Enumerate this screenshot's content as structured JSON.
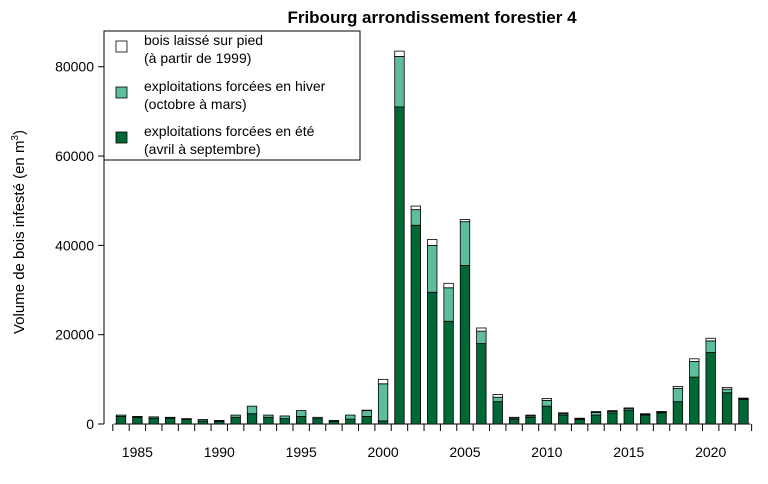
{
  "chart_data": {
    "type": "bar",
    "stacked": true,
    "title": "Fribourg arrondissement forestier 4",
    "ylabel": "Volume de bois infesté (en m",
    "ylabel_superscript": "3",
    "ylabel_suffix": ")",
    "xlabel": "",
    "ylim": [
      0,
      88000
    ],
    "yticks": [
      0,
      20000,
      40000,
      60000,
      80000
    ],
    "xtick_labels": [
      "1985",
      "1990",
      "1995",
      "2000",
      "2005",
      "2010",
      "2015",
      "2020"
    ],
    "x": [
      1984,
      1985,
      1986,
      1987,
      1988,
      1989,
      1990,
      1991,
      1992,
      1993,
      1994,
      1995,
      1996,
      1997,
      1998,
      1999,
      2000,
      2001,
      2002,
      2003,
      2004,
      2005,
      2006,
      2007,
      2008,
      2009,
      2010,
      2011,
      2012,
      2013,
      2014,
      2015,
      2016,
      2017,
      2018,
      2019,
      2020,
      2021,
      2022
    ],
    "series": [
      {
        "name_lines": [
          "exploitations forcées en été",
          "(avril à septembre)"
        ],
        "color": "#006837",
        "values": [
          1700,
          1500,
          1300,
          1300,
          1000,
          700,
          600,
          1500,
          2300,
          1500,
          1200,
          1700,
          1200,
          600,
          1100,
          1700,
          700,
          71000,
          44500,
          29500,
          23000,
          35500,
          18000,
          5000,
          1000,
          1500,
          4000,
          2000,
          1000,
          2000,
          2500,
          3000,
          2000,
          2500,
          5000,
          10500,
          16000,
          7000,
          5500
        ]
      },
      {
        "name_lines": [
          "exploitations forcées en hiver",
          "(octobre à mars)"
        ],
        "color": "#5dbd9c",
        "values": [
          300,
          200,
          300,
          200,
          200,
          300,
          200,
          500,
          1700,
          500,
          600,
          1300,
          300,
          200,
          900,
          1300,
          8300,
          11300,
          3500,
          10500,
          7500,
          9800,
          2800,
          1000,
          300,
          300,
          1300,
          300,
          200,
          600,
          300,
          400,
          200,
          200,
          3000,
          3500,
          2600,
          800,
          200
        ]
      },
      {
        "name_lines": [
          "bois laissé sur pied",
          "(à partir de 1999)"
        ],
        "color": "#ffffff",
        "values": [
          0,
          0,
          0,
          0,
          0,
          0,
          0,
          0,
          0,
          0,
          0,
          0,
          0,
          0,
          0,
          100,
          1000,
          1200,
          800,
          1300,
          1000,
          500,
          700,
          600,
          200,
          200,
          400,
          200,
          100,
          200,
          200,
          200,
          100,
          100,
          400,
          600,
          600,
          400,
          100
        ]
      }
    ],
    "legend_order": [
      2,
      1,
      0
    ],
    "legend_position": "top-left"
  }
}
